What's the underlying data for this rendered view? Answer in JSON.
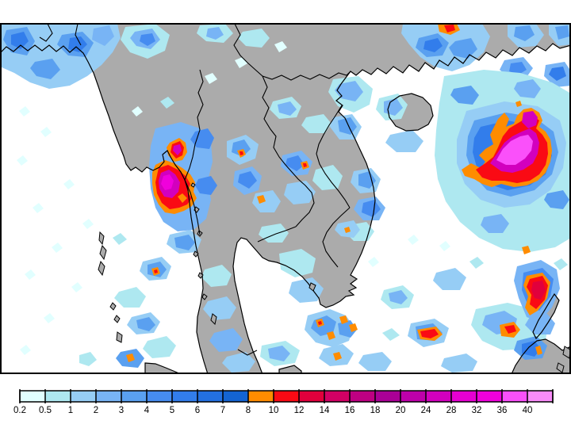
{
  "colorbar": {
    "levels": [
      "0.2",
      "0.5",
      "1",
      "2",
      "3",
      "4",
      "5",
      "6",
      "7",
      "8",
      "10",
      "12",
      "14",
      "16",
      "18",
      "20",
      "24",
      "28",
      "32",
      "36",
      "40"
    ],
    "colors": [
      "#E1FFFF",
      "#AEE8F0",
      "#96CDF5",
      "#78B4F5",
      "#5AA0F0",
      "#468CF0",
      "#327DEB",
      "#2370E1",
      "#1464D2",
      "#FF8C00",
      "#FA0A14",
      "#E1003C",
      "#D20064",
      "#BE0082",
      "#AA0096",
      "#BE00AA",
      "#D200BE",
      "#E600D2",
      "#F000DC",
      "#FA50FA",
      "#FA8CFA"
    ]
  },
  "map": {
    "colors": {
      "sea": "#FFFFFF",
      "land": "#ABABAB",
      "coastline": "#000000",
      "frame": "#000000",
      "label_text": "#000000"
    }
  }
}
